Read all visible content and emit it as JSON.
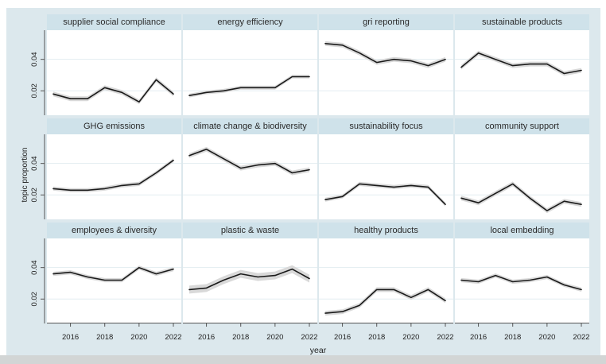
{
  "chart_data": {
    "type": "line",
    "layout": "faceted-small-multiples-3x4",
    "title": "",
    "xlabel": "year",
    "ylabel": "topic proportion",
    "x": [
      2015,
      2016,
      2017,
      2018,
      2019,
      2020,
      2021,
      2022
    ],
    "x_tick_labels": [
      "2016",
      "2018",
      "2020",
      "2022"
    ],
    "x_tick_indices": [
      1,
      3,
      5,
      7
    ],
    "y_tick_labels": [
      "0.02",
      "0.04"
    ],
    "y_ticks": [
      0.02,
      0.04
    ],
    "ylim": [
      0.0045,
      0.0585
    ],
    "grid": true,
    "confidence_band": true,
    "series": [
      {
        "name": "supplier social compliance",
        "values": [
          0.018,
          0.015,
          0.015,
          0.022,
          0.019,
          0.013,
          0.027,
          0.018
        ],
        "ci_halfwidth": 0.0015
      },
      {
        "name": "energy efficiency",
        "values": [
          0.017,
          0.019,
          0.02,
          0.022,
          0.022,
          0.022,
          0.029,
          0.029
        ],
        "ci_halfwidth": 0.0012
      },
      {
        "name": "gri reporting",
        "values": [
          0.05,
          0.049,
          0.044,
          0.038,
          0.04,
          0.039,
          0.036,
          0.04
        ],
        "ci_halfwidth": 0.0015
      },
      {
        "name": "sustainable products",
        "values": [
          0.035,
          0.044,
          0.04,
          0.036,
          0.037,
          0.037,
          0.031,
          0.033
        ],
        "ci_halfwidth": 0.0015
      },
      {
        "name": "GHG emissions",
        "values": [
          0.024,
          0.023,
          0.023,
          0.024,
          0.026,
          0.027,
          0.034,
          0.042
        ],
        "ci_halfwidth": 0.0013
      },
      {
        "name": "climate change & biodiversity",
        "values": [
          0.045,
          0.049,
          0.043,
          0.037,
          0.039,
          0.04,
          0.034,
          0.036
        ],
        "ci_halfwidth": 0.0015
      },
      {
        "name": "sustainability focus",
        "values": [
          0.017,
          0.019,
          0.027,
          0.026,
          0.025,
          0.026,
          0.025,
          0.014
        ],
        "ci_halfwidth": 0.0013
      },
      {
        "name": "community support",
        "values": [
          0.018,
          0.015,
          0.021,
          0.027,
          0.018,
          0.01,
          0.016,
          0.014
        ],
        "ci_halfwidth": 0.0015
      },
      {
        "name": "employees & diversity",
        "values": [
          0.036,
          0.037,
          0.034,
          0.032,
          0.032,
          0.04,
          0.036,
          0.039
        ],
        "ci_halfwidth": 0.0013
      },
      {
        "name": "plastic & waste",
        "values": [
          0.026,
          0.027,
          0.032,
          0.036,
          0.034,
          0.035,
          0.039,
          0.033
        ],
        "ci_halfwidth": 0.0025
      },
      {
        "name": "healthy products",
        "values": [
          0.011,
          0.012,
          0.016,
          0.026,
          0.026,
          0.021,
          0.026,
          0.019
        ],
        "ci_halfwidth": 0.0015
      },
      {
        "name": "local embedding",
        "values": [
          0.032,
          0.031,
          0.035,
          0.031,
          0.032,
          0.034,
          0.029,
          0.026
        ],
        "ci_halfwidth": 0.0013
      }
    ],
    "colors": {
      "figure_bg": "#dce8ed",
      "strip_bg": "#cfe2ea",
      "plot_bg": "#ffffff",
      "line": "#1a1a1a",
      "band": "#d9d9d9",
      "gridline": "#e3edf1",
      "axis": "#555555",
      "tick_text": "#222222"
    }
  }
}
